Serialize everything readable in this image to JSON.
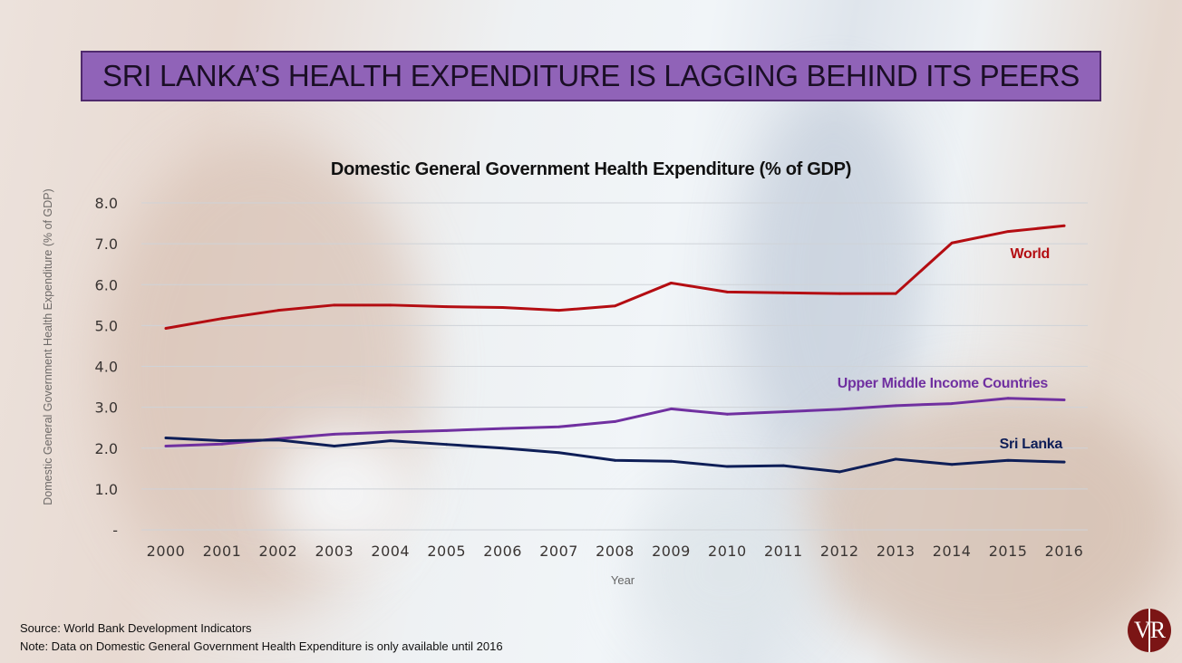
{
  "header": {
    "title": "SRI LANKA’S HEALTH EXPENDITURE IS LAGGING BEHIND ITS PEERS"
  },
  "footer": {
    "source": "Source: World Bank Development Indicators",
    "note": "Note: Data on Domestic General Government Health Expenditure is only available until 2016"
  },
  "logo": {
    "text": "VR"
  },
  "colors": {
    "title_fill": "#9063b8",
    "title_border": "#4f2a6d",
    "world": "#b40d12",
    "umic": "#7030a0",
    "sri_lanka": "#0e1e57",
    "logo": "#7b1515"
  },
  "chart_data": {
    "type": "line",
    "title": "Domestic General Government Health Expenditure (% of GDP)",
    "xlabel": "Year",
    "ylabel": "Domestic General Government Health Expenditure (% of GDP)",
    "ylim": [
      0,
      8
    ],
    "yticks": [
      0,
      1,
      2,
      3,
      4,
      5,
      6,
      7,
      8
    ],
    "ytick_labels": [
      "-",
      "1.0",
      "2.0",
      "3.0",
      "4.0",
      "5.0",
      "6.0",
      "7.0",
      "8.0"
    ],
    "grid": true,
    "legend": "inline-labels",
    "categories": [
      "2000",
      "2001",
      "2002",
      "2003",
      "2004",
      "2005",
      "2006",
      "2007",
      "2008",
      "2009",
      "2010",
      "2011",
      "2012",
      "2013",
      "2014",
      "2015",
      "2016"
    ],
    "series": [
      {
        "name": "World",
        "color": "#b40d12",
        "values": [
          4.93,
          5.17,
          5.37,
          5.5,
          5.5,
          5.46,
          5.44,
          5.37,
          5.48,
          6.04,
          5.82,
          5.8,
          5.78,
          5.78,
          7.02,
          7.3,
          7.44
        ]
      },
      {
        "name": "Upper Middle Income Countries",
        "color": "#7030a0",
        "values": [
          2.05,
          2.1,
          2.23,
          2.34,
          2.39,
          2.43,
          2.48,
          2.52,
          2.65,
          2.96,
          2.83,
          2.89,
          2.95,
          3.04,
          3.09,
          3.22,
          3.18
        ]
      },
      {
        "name": "Sri Lanka",
        "color": "#0e1e57",
        "values": [
          2.25,
          2.18,
          2.2,
          2.05,
          2.18,
          2.09,
          2.0,
          1.89,
          1.7,
          1.68,
          1.55,
          1.57,
          1.42,
          1.73,
          1.6,
          1.7,
          1.66
        ]
      }
    ]
  }
}
